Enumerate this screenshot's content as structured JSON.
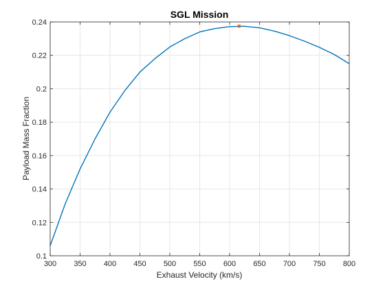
{
  "chart_data": {
    "type": "line",
    "title": "SGL Mission",
    "xlabel": "Exhaust Velocity (km/s)",
    "ylabel": "Payload Mass Fraction",
    "xlim": [
      300,
      800
    ],
    "ylim": [
      0.1,
      0.24
    ],
    "xticks": [
      300,
      350,
      400,
      450,
      500,
      550,
      600,
      650,
      700,
      750,
      800
    ],
    "yticks": [
      0.1,
      0.12,
      0.14,
      0.16,
      0.18,
      0.2,
      0.22,
      0.24
    ],
    "xtick_labels": [
      "300",
      "350",
      "400",
      "450",
      "500",
      "550",
      "600",
      "650",
      "700",
      "750",
      "800"
    ],
    "ytick_labels": [
      "0.1",
      "0.12",
      "0.14",
      "0.16",
      "0.18",
      "0.2",
      "0.22",
      "0.24"
    ],
    "grid": true,
    "series": [
      {
        "color": "#0072BD",
        "x": [
          300,
          325,
          350,
          375,
          400,
          425,
          450,
          475,
          500,
          525,
          550,
          575,
          600,
          625,
          650,
          675,
          700,
          725,
          750,
          775,
          800
        ],
        "y": [
          0.106,
          0.131,
          0.152,
          0.17,
          0.186,
          0.199,
          0.21,
          0.218,
          0.225,
          0.23,
          0.234,
          0.236,
          0.2372,
          0.2374,
          0.2365,
          0.2345,
          0.2318,
          0.2285,
          0.2248,
          0.2205,
          0.215
        ]
      }
    ],
    "markers": [
      {
        "symbol": "*",
        "color": "#D95319",
        "x": 616,
        "y": 0.2375
      }
    ]
  }
}
